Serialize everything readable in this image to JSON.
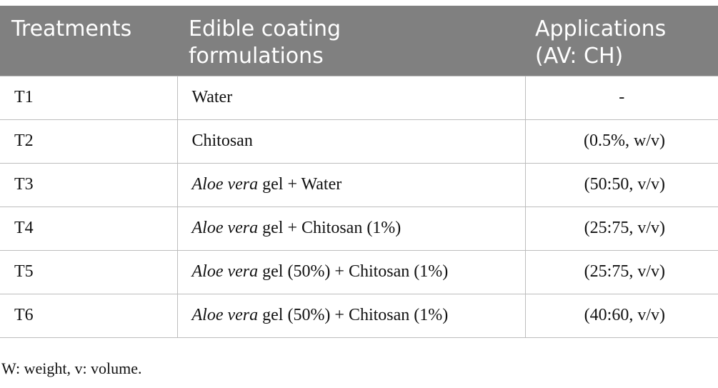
{
  "table": {
    "header": [
      "Treatments",
      [
        "Edible coating",
        "formulations"
      ],
      [
        "Applications",
        "(AV: CH)"
      ]
    ],
    "rows": [
      [
        "T1",
        {
          "italic": "",
          "text": "Water"
        },
        "-"
      ],
      [
        "T2",
        {
          "italic": "",
          "text": "Chitosan"
        },
        "(0.5%, w/v)"
      ],
      [
        "T3",
        {
          "italic": "Aloe vera",
          "text": " gel + Water"
        },
        "(50:50, v/v)"
      ],
      [
        "T4",
        {
          "italic": "Aloe vera",
          "text": " gel + Chitosan (1%)"
        },
        "(25:75, v/v)"
      ],
      [
        "T5",
        {
          "italic": "Aloe vera",
          "text": " gel (50%) + Chitosan (1%)"
        },
        "(25:75, v/v)"
      ],
      [
        "T6",
        {
          "italic": "Aloe vera",
          "text": " gel (50%) + Chitosan (1%)"
        },
        "(40:60, v/v)"
      ]
    ]
  },
  "footnote": "W: weight, v: volume."
}
